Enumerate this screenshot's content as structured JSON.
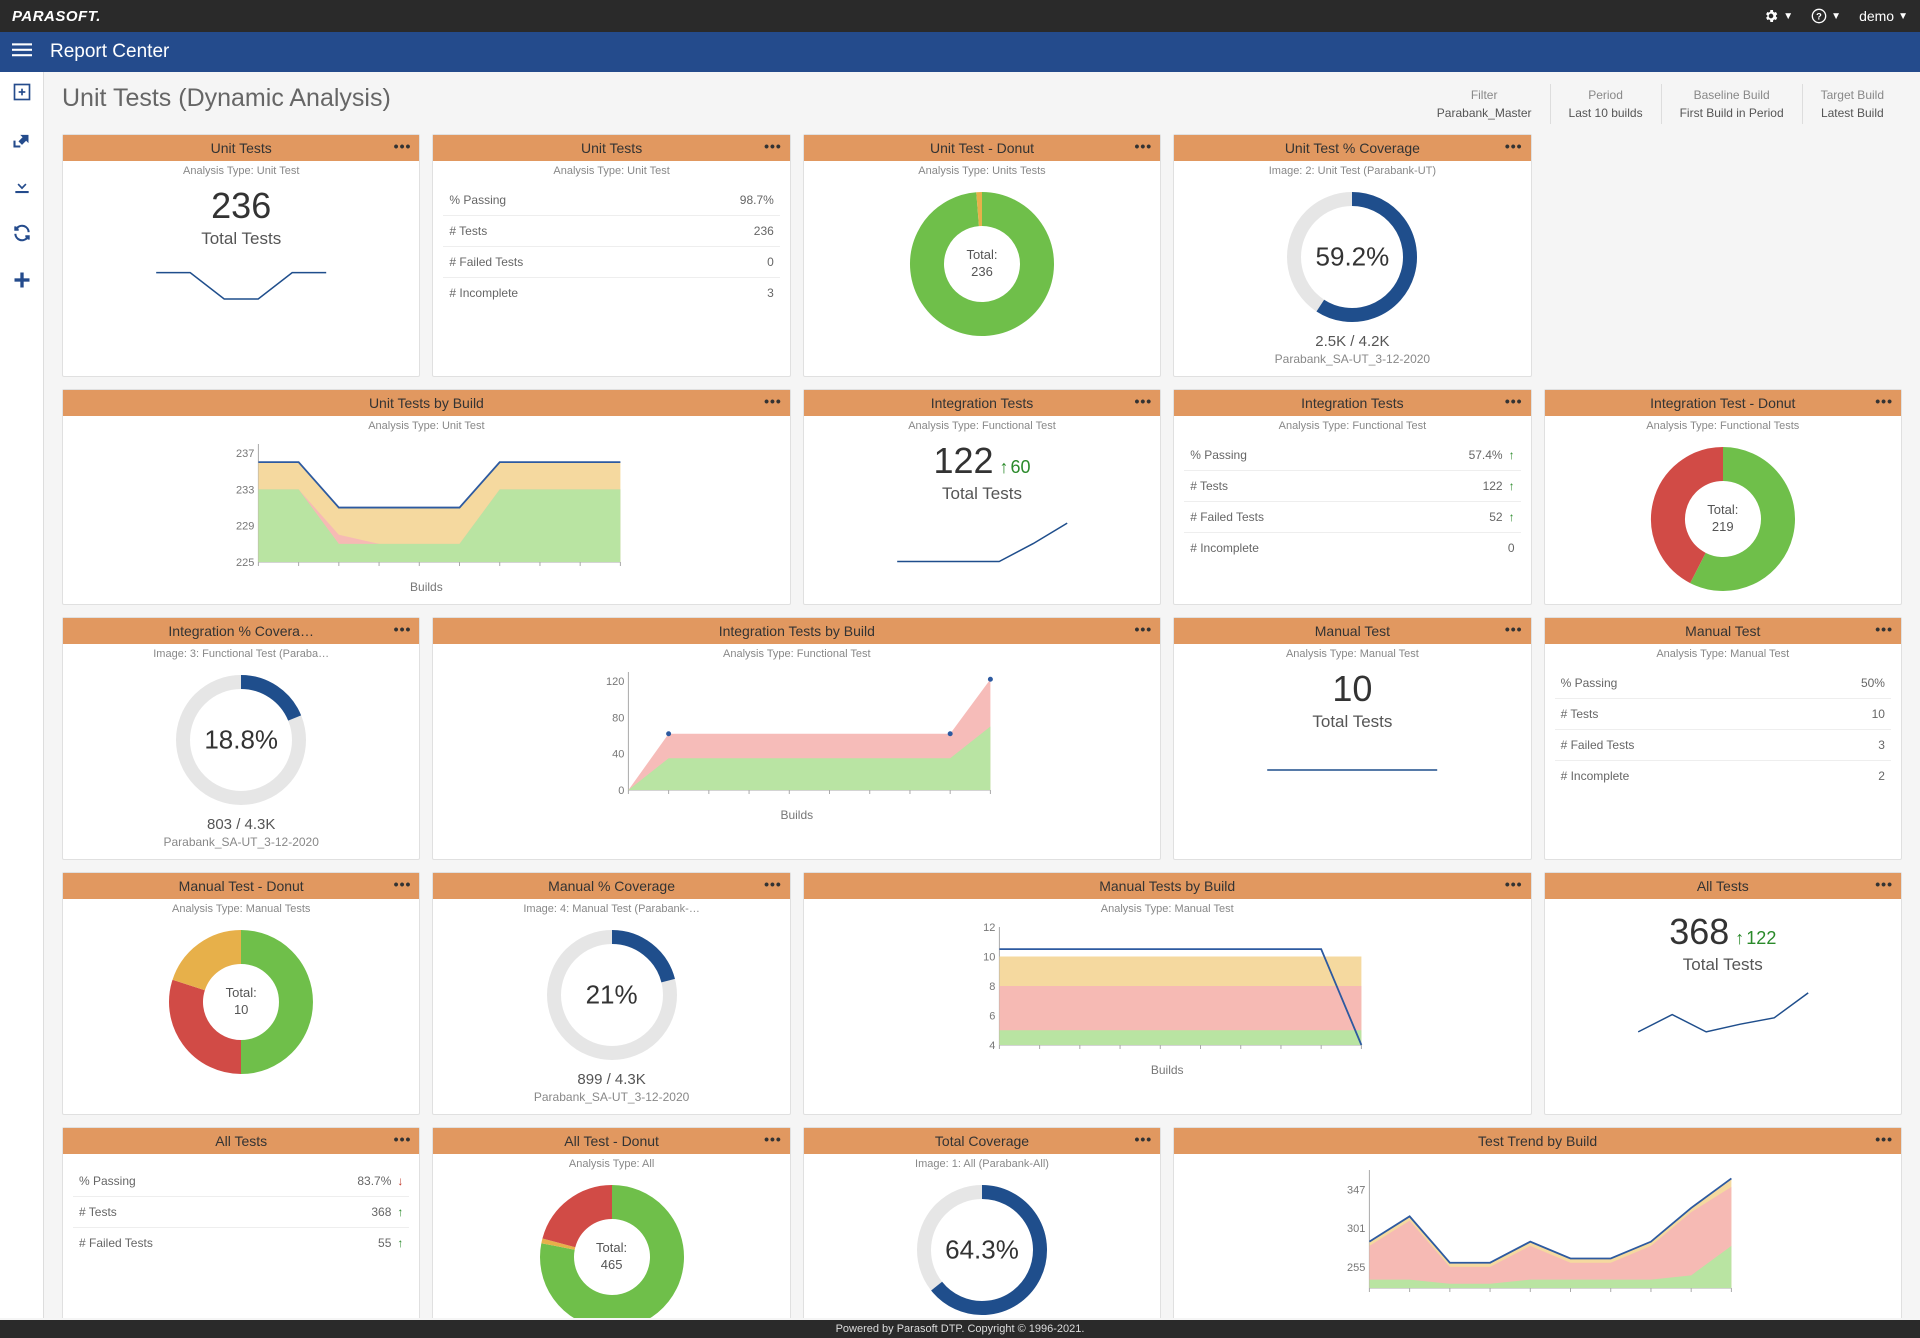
{
  "brand": "PARASOFT.",
  "user": "demo",
  "app_title": "Report Center",
  "page_title": "Unit Tests (Dynamic Analysis)",
  "footer": "Powered by Parasoft DTP. Copyright © 1996-2021.",
  "filters": [
    {
      "label": "Filter",
      "value": "Parabank_Master"
    },
    {
      "label": "Period",
      "value": "Last 10 builds"
    },
    {
      "label": "Baseline Build",
      "value": "First Build in Period"
    },
    {
      "label": "Target Build",
      "value": "Latest Build"
    }
  ],
  "colors": {
    "header": "#e19860",
    "green": "#6fbf4a",
    "greenA": "#b5e6a1",
    "red": "#d14b46",
    "redA": "#f5b8b5",
    "orange": "#e7b04a",
    "orangeA": "#f4d79a",
    "navy": "#1f4e8c",
    "gaugeTrack": "#e6e6e6",
    "axis": "#888"
  },
  "rows": [
    {
      "summary": {
        "title": "Unit Tests",
        "sub": "Analysis Type: Unit Test",
        "value": "236",
        "label": "Total Tests",
        "delta": null,
        "spark": {
          "points": [
            236,
            236,
            225,
            225,
            236,
            236
          ],
          "ymin": 220,
          "ymax": 240
        }
      },
      "stats": {
        "title": "Unit Tests",
        "sub": "Analysis Type: Unit Test",
        "rows": [
          {
            "label": "% Passing",
            "value": "98.7%",
            "dir": null
          },
          {
            "label": "# Tests",
            "value": "236",
            "dir": null
          },
          {
            "label": "# Failed Tests",
            "value": "0",
            "dir": null
          },
          {
            "label": "# Incomplete",
            "value": "3",
            "dir": null
          }
        ]
      },
      "donut": {
        "title": "Unit Test - Donut",
        "sub": "Analysis Type: Units Tests",
        "total_label": "Total:",
        "total": "236",
        "slices": [
          {
            "v": 233,
            "c": "#6fbf4a"
          },
          {
            "v": 3,
            "c": "#e7b04a"
          }
        ]
      },
      "gauge": {
        "title": "Unit Test % Coverage",
        "sub": "Image: 2: Unit Test (Parabank-UT)",
        "pct": 59.2,
        "pct_label": "59.2%",
        "line1": "2.5K / 4.2K",
        "line2": "Parabank_SA-UT_3-12-2020"
      },
      "chart": {
        "title": "Unit Tests by Build",
        "sub": "Analysis Type: Unit Test",
        "xlabel": "Builds",
        "yticks": [
          225,
          229,
          233,
          237
        ],
        "ymin": 225,
        "ymax": 238,
        "series": [
          {
            "c": "#b5e6a1",
            "pts": [
              233,
              233,
              227,
              227,
              227,
              227,
              233,
              233,
              233,
              233
            ]
          },
          {
            "c": "#f5b8b5",
            "pts": [
              233,
              233,
              228,
              227,
              227,
              227,
              233,
              233,
              233,
              233
            ]
          },
          {
            "c": "#f4d79a",
            "pts": [
              236,
              236,
              231,
              231,
              231,
              231,
              236,
              236,
              236,
              236
            ]
          }
        ],
        "line": {
          "c": "#2d5aa0",
          "pts": [
            236,
            236,
            231,
            231,
            231,
            231,
            236,
            236,
            236,
            236
          ]
        }
      }
    },
    {
      "summary": {
        "title": "Integration Tests",
        "sub": "Analysis Type: Functional Test",
        "value": "122",
        "label": "Total Tests",
        "delta": {
          "dir": "up",
          "val": "60"
        },
        "spark": {
          "points": [
            62,
            62,
            62,
            62,
            90,
            122
          ],
          "ymin": 55,
          "ymax": 130
        }
      },
      "stats": {
        "title": "Integration Tests",
        "sub": "Analysis Type: Functional Test",
        "rows": [
          {
            "label": "% Passing",
            "value": "57.4%",
            "dir": "up"
          },
          {
            "label": "# Tests",
            "value": "122",
            "dir": "up"
          },
          {
            "label": "# Failed Tests",
            "value": "52",
            "dir": "up"
          },
          {
            "label": "# Incomplete",
            "value": "0",
            "dir": null
          }
        ]
      },
      "donut": {
        "title": "Integration Test - Donut",
        "sub": "Analysis Type: Functional Tests",
        "total_label": "Total:",
        "total": "219",
        "slices": [
          {
            "v": 126,
            "c": "#6fbf4a"
          },
          {
            "v": 93,
            "c": "#d14b46"
          }
        ]
      },
      "gauge": {
        "title": "Integration % Covera…",
        "sub": "Image: 3: Functional Test (Paraba…",
        "pct": 18.8,
        "pct_label": "18.8%",
        "line1": "803 / 4.3K",
        "line2": "Parabank_SA-UT_3-12-2020"
      },
      "chart": {
        "title": "Integration Tests by Build",
        "sub": "Analysis Type: Functional Test",
        "xlabel": "Builds",
        "yticks": [
          0,
          40,
          80,
          120
        ],
        "ymin": 0,
        "ymax": 130,
        "series": [
          {
            "c": "#b5e6a1",
            "pts": [
              0,
              35,
              35,
              35,
              35,
              35,
              35,
              35,
              35,
              70
            ]
          },
          {
            "c": "#f5b8b5",
            "pts": [
              0,
              62,
              62,
              62,
              62,
              62,
              62,
              62,
              62,
              122
            ]
          }
        ],
        "line": null,
        "markers": {
          "c": "#2d5aa0",
          "pts": [
            null,
            62,
            null,
            null,
            null,
            null,
            null,
            null,
            62,
            122
          ]
        }
      }
    },
    {
      "summary": {
        "title": "Manual Test",
        "sub": "Analysis Type: Manual Test",
        "value": "10",
        "label": "Total Tests",
        "delta": null,
        "spark": {
          "points": [
            10,
            10,
            10,
            10,
            10,
            10
          ],
          "ymin": 9,
          "ymax": 11
        }
      },
      "stats": {
        "title": "Manual Test",
        "sub": "Analysis Type: Manual Test",
        "rows": [
          {
            "label": "% Passing",
            "value": "50%",
            "dir": null
          },
          {
            "label": "# Tests",
            "value": "10",
            "dir": null
          },
          {
            "label": "# Failed Tests",
            "value": "3",
            "dir": null
          },
          {
            "label": "# Incomplete",
            "value": "2",
            "dir": null
          }
        ]
      },
      "donut": {
        "title": "Manual Test - Donut",
        "sub": "Analysis Type: Manual Tests",
        "total_label": "Total:",
        "total": "10",
        "slices": [
          {
            "v": 5,
            "c": "#6fbf4a"
          },
          {
            "v": 3,
            "c": "#d14b46"
          },
          {
            "v": 2,
            "c": "#e7b04a"
          }
        ]
      },
      "gauge": {
        "title": "Manual % Coverage",
        "sub": "Image: 4: Manual Test (Parabank-…",
        "pct": 21,
        "pct_label": "21%",
        "line1": "899 / 4.3K",
        "line2": "Parabank_SA-UT_3-12-2020"
      },
      "chart": {
        "title": "Manual Tests by Build",
        "sub": "Analysis Type: Manual Test",
        "xlabel": "Builds",
        "yticks": [
          4,
          6,
          8,
          10,
          12
        ],
        "ymin": 4,
        "ymax": 12,
        "series": [
          {
            "c": "#b5e6a1",
            "pts": [
              5,
              5,
              5,
              5,
              5,
              5,
              5,
              5,
              5,
              5
            ]
          },
          {
            "c": "#f5b8b5",
            "pts": [
              8,
              8,
              8,
              8,
              8,
              8,
              8,
              8,
              8,
              8
            ]
          },
          {
            "c": "#f4d79a",
            "pts": [
              10,
              10,
              10,
              10,
              10,
              10,
              10,
              10,
              10,
              10
            ]
          }
        ],
        "line": {
          "c": "#2d5aa0",
          "pts": [
            10.5,
            10.5,
            10.5,
            10.5,
            10.5,
            10.5,
            10.5,
            10.5,
            10.5,
            4
          ]
        }
      }
    },
    {
      "summary": {
        "title": "All Tests",
        "sub": "",
        "value": "368",
        "label": "Total Tests",
        "delta": {
          "dir": "up",
          "val": "122"
        },
        "spark": {
          "points": [
            246,
            300,
            246,
            270,
            290,
            368
          ],
          "ymin": 230,
          "ymax": 380
        }
      },
      "stats": {
        "title": "All Tests",
        "sub": "",
        "rows": [
          {
            "label": "% Passing",
            "value": "83.7%",
            "dir": "down"
          },
          {
            "label": "# Tests",
            "value": "368",
            "dir": "up"
          },
          {
            "label": "# Failed Tests",
            "value": "55",
            "dir": "up"
          }
        ]
      },
      "donut": {
        "title": "All Test - Donut",
        "sub": "Analysis Type: All",
        "total_label": "Total:",
        "total": "465",
        "slices": [
          {
            "v": 363,
            "c": "#6fbf4a"
          },
          {
            "v": 5,
            "c": "#e7b04a"
          },
          {
            "v": 97,
            "c": "#d14b46"
          }
        ]
      },
      "gauge": {
        "title": "Total Coverage",
        "sub": "Image: 1: All (Parabank-All)",
        "pct": 64.3,
        "pct_label": "64.3%",
        "line1": "",
        "line2": ""
      },
      "chart": {
        "title": "Test Trend by Build",
        "sub": "",
        "xlabel": "",
        "yticks": [
          255,
          301,
          347
        ],
        "ymin": 230,
        "ymax": 370,
        "series": [
          {
            "c": "#b5e6a1",
            "pts": [
              240,
              240,
              235,
              235,
              240,
              240,
              240,
              240,
              245,
              280
            ]
          },
          {
            "c": "#f5b8b5",
            "pts": [
              280,
              310,
              255,
              255,
              280,
              260,
              260,
              280,
              320,
              350
            ]
          },
          {
            "c": "#f4d79a",
            "pts": [
              285,
              315,
              260,
              260,
              285,
              265,
              265,
              285,
              325,
              360
            ]
          }
        ],
        "line": {
          "c": "#2d5aa0",
          "pts": [
            285,
            315,
            260,
            260,
            285,
            265,
            265,
            285,
            325,
            360
          ]
        }
      }
    }
  ]
}
